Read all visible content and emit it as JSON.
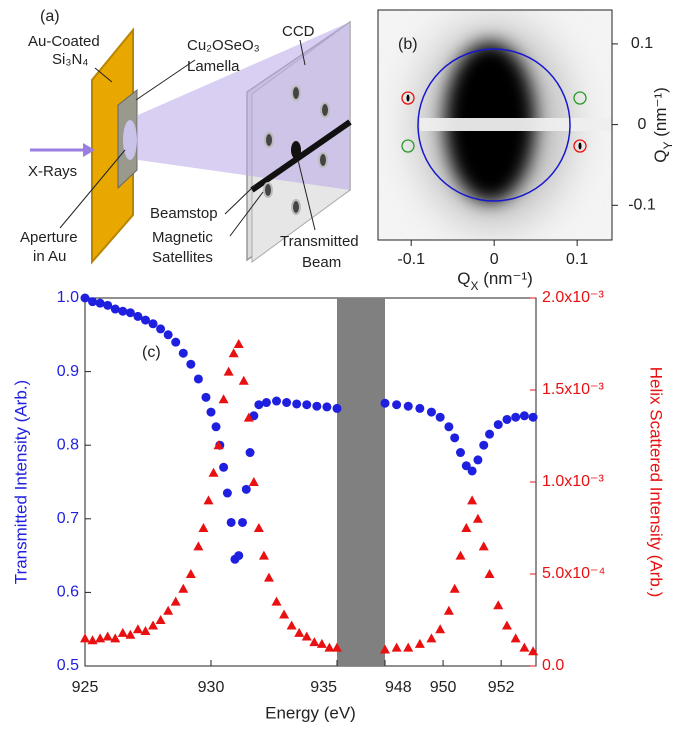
{
  "diagram": {
    "label": "(a)",
    "plate_top": "Au-Coated",
    "plate_bottom": "Si₃N₄",
    "lamella_top": "Cu₂OSeO₃",
    "lamella_bottom": "Lamella",
    "detector": "CCD",
    "beam": "X-Rays",
    "aperture_top": "Aperture",
    "aperture_bottom": "in Au",
    "beamstop": "Beamstop",
    "satellites_top": "Magnetic",
    "satellites_bottom": "Satellites",
    "transmitted_top": "Transmitted",
    "transmitted_bottom": "Beam"
  },
  "chart_data": [
    {
      "type": "scatter",
      "label": "(c)",
      "xlabel": "Energy (eV)",
      "ylabel": "Transmitted Intensity (Arb.)",
      "y2label": "Helix Scattered Intensity (Arb.)",
      "xlim": [
        925,
        953.2
      ],
      "xbreak": [
        935,
        948
      ],
      "xticks": [
        925,
        930,
        935,
        948,
        950,
        952
      ],
      "ylim": [
        0.5,
        1.0
      ],
      "yticks": [
        0.5,
        0.6,
        0.7,
        0.8,
        0.9,
        {
          "value": 1.0,
          "label": "1.0"
        }
      ],
      "y2lim": [
        0,
        0.002
      ],
      "y2ticks": [
        {
          "value": 0,
          "label": "0.0"
        },
        {
          "value": 0.0005,
          "label": "5.0x10⁻⁴"
        },
        {
          "value": 0.001,
          "label": "1.0x10⁻³"
        },
        {
          "value": 0.0015,
          "label": "1.5x10⁻³"
        },
        {
          "value": 0.002,
          "label": "2.0x10⁻³"
        }
      ],
      "ycolor": "#1f1fe0",
      "y2color": "#e81010",
      "series": [
        {
          "marker": "circle",
          "color": "#1f1fe0",
          "axis": "y",
          "x": [
            925,
            925.3,
            925.6,
            925.9,
            926.2,
            926.5,
            926.8,
            927.1,
            927.4,
            927.7,
            928,
            928.3,
            928.6,
            928.9,
            929.2,
            929.5,
            929.8,
            930,
            930.2,
            930.35,
            930.5,
            930.65,
            930.8,
            930.95,
            931.1,
            931.25,
            931.4,
            931.55,
            931.7,
            931.9,
            932.2,
            932.6,
            933,
            933.4,
            933.8,
            934.2,
            934.6,
            935,
            948,
            948.4,
            948.8,
            949.2,
            949.6,
            949.9,
            950.2,
            950.4,
            950.6,
            950.8,
            951,
            951.2,
            951.4,
            951.6,
            951.9,
            952.2,
            952.5,
            952.8,
            953.1
          ],
          "values": [
            1.0,
            0.995,
            0.993,
            0.99,
            0.985,
            0.982,
            0.98,
            0.975,
            0.97,
            0.965,
            0.958,
            0.95,
            0.94,
            0.925,
            0.91,
            0.89,
            0.865,
            0.845,
            0.825,
            0.8,
            0.77,
            0.735,
            0.695,
            0.645,
            0.65,
            0.695,
            0.74,
            0.79,
            0.84,
            0.855,
            0.858,
            0.86,
            0.858,
            0.856,
            0.855,
            0.853,
            0.852,
            0.85,
            0.857,
            0.855,
            0.853,
            0.85,
            0.845,
            0.838,
            0.825,
            0.81,
            0.79,
            0.772,
            0.765,
            0.78,
            0.8,
            0.815,
            0.828,
            0.835,
            0.838,
            0.84,
            0.838
          ]
        },
        {
          "marker": "triangle",
          "color": "#e81010",
          "axis": "y2",
          "x": [
            925,
            925.3,
            925.6,
            925.9,
            926.2,
            926.5,
            926.8,
            927.1,
            927.4,
            927.7,
            928,
            928.3,
            928.6,
            928.9,
            929.2,
            929.5,
            929.7,
            929.9,
            930.1,
            930.3,
            930.5,
            930.7,
            930.9,
            931.1,
            931.3,
            931.5,
            931.7,
            931.9,
            932.1,
            932.3,
            932.6,
            932.9,
            933.2,
            933.5,
            933.8,
            934.1,
            934.4,
            934.7,
            935,
            948,
            948.4,
            948.8,
            949.2,
            949.6,
            949.9,
            950.2,
            950.4,
            950.6,
            950.8,
            951,
            951.2,
            951.4,
            951.6,
            951.9,
            952.2,
            952.5,
            952.8,
            953.1
          ],
          "values": [
            0.00015,
            0.00014,
            0.00015,
            0.00016,
            0.00015,
            0.00018,
            0.00017,
            0.0002,
            0.00019,
            0.00022,
            0.00025,
            0.0003,
            0.00035,
            0.00042,
            0.0005,
            0.00065,
            0.00075,
            0.0009,
            0.00105,
            0.0012,
            0.00145,
            0.0016,
            0.0017,
            0.00175,
            0.00155,
            0.00135,
            0.001,
            0.00075,
            0.0006,
            0.00048,
            0.00035,
            0.00028,
            0.00022,
            0.00018,
            0.00016,
            0.00013,
            0.00012,
            0.0001,
            0.0001,
            9e-05,
            0.0001,
            0.0001,
            0.00012,
            0.00015,
            0.0002,
            0.0003,
            0.00042,
            0.0006,
            0.00075,
            0.0009,
            0.0008,
            0.00065,
            0.0005,
            0.00033,
            0.00022,
            0.00015,
            0.0001,
            8e-05
          ]
        }
      ]
    },
    {
      "type": "image",
      "label": "(b)",
      "xlabel": {
        "main": "Q",
        "sub": "X",
        "rest": " (nm⁻¹)"
      },
      "ylabel": {
        "main": "Q",
        "sub": "Y",
        "rest": " (nm⁻¹)"
      },
      "xlim": [
        -0.14,
        0.142
      ],
      "ylim": [
        -0.143,
        0.142
      ],
      "xticks": [
        -0.1,
        0,
        0.1
      ],
      "yticks": [
        -0.1,
        0,
        0.1
      ]
    }
  ]
}
